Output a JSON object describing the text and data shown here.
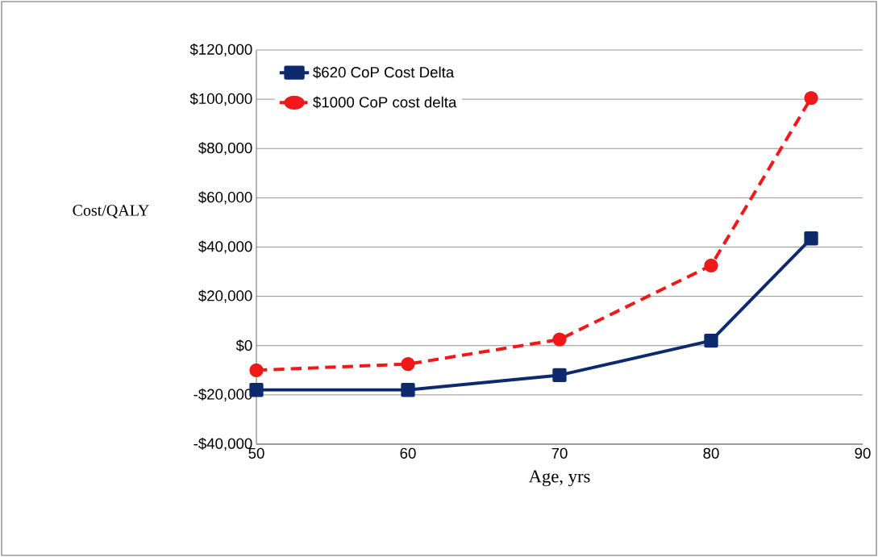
{
  "chart_data": {
    "type": "line",
    "xlabel": "Age, yrs",
    "ylabel": "Cost/QALY",
    "x": [
      50,
      60,
      70,
      80,
      86.6
    ],
    "series": [
      {
        "name": "$620 CoP Cost Delta",
        "color": "#0e2a6e",
        "marker": "square",
        "line_style": "solid",
        "values": [
          -18000,
          -18000,
          -12000,
          2000,
          43500
        ]
      },
      {
        "name": "$1000 CoP cost delta",
        "color": "#f01818",
        "marker": "circle",
        "line_style": "dashed",
        "values": [
          -10000,
          -7500,
          2500,
          32500,
          100500
        ]
      }
    ],
    "xlim": [
      50,
      90
    ],
    "xticks": [
      50,
      60,
      70,
      80,
      90
    ],
    "ylim": [
      -40000,
      120000
    ],
    "yticks": [
      {
        "value": -40000,
        "label": "-$40,000"
      },
      {
        "value": -20000,
        "label": "-$20,000"
      },
      {
        "value": 0,
        "label": "$0"
      },
      {
        "value": 20000,
        "label": "$20,000"
      },
      {
        "value": 40000,
        "label": "$40,000"
      },
      {
        "value": 60000,
        "label": "$60,000"
      },
      {
        "value": 80000,
        "label": "$80,000"
      },
      {
        "value": 100000,
        "label": "$100,000"
      },
      {
        "value": 120000,
        "label": "$120,000"
      }
    ],
    "grid": "y",
    "legend": "top left"
  }
}
